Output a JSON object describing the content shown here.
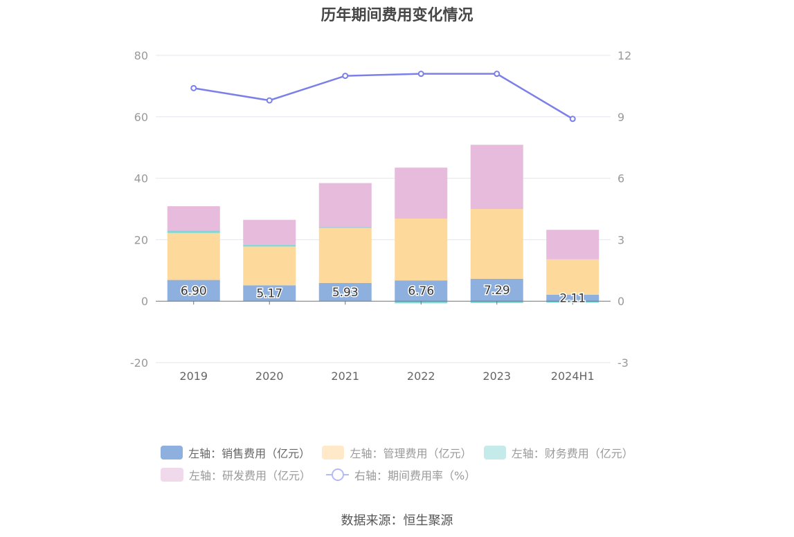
{
  "title": "历年期间费用变化情况",
  "source": "数据来源：恒生聚源",
  "colors": {
    "sales": "#8eb0de",
    "admin": "#fed99c",
    "finance": "#7dd8d8",
    "rd": "#e6bbdc",
    "rate": "#7b7fe8"
  },
  "legend": [
    {
      "label": "左轴：销售费用（亿元）",
      "color": "#8eb0de",
      "kind": "box",
      "active": true
    },
    {
      "label": "左轴：管理费用（亿元）",
      "color": "#ffe9c8",
      "kind": "box",
      "active": false
    },
    {
      "label": "左轴：财务费用（亿元）",
      "color": "#c5eaea",
      "kind": "box",
      "active": false
    },
    {
      "label": "左轴：研发费用（亿元）",
      "color": "#f1d9ec",
      "kind": "box",
      "active": false
    },
    {
      "label": "右轴：期间费用率（%）",
      "color": "#b6b9f4",
      "kind": "line",
      "active": false
    }
  ],
  "chart_data": {
    "type": "bar",
    "categories": [
      "2019",
      "2020",
      "2021",
      "2022",
      "2023",
      "2024H1"
    ],
    "series": [
      {
        "name": "左轴：销售费用（亿元）",
        "axis": "left",
        "values": [
          6.9,
          5.17,
          5.93,
          6.76,
          7.29,
          2.11
        ],
        "show_labels": true
      },
      {
        "name": "左轴：管理费用（亿元）",
        "axis": "left",
        "values": [
          15.3,
          12.6,
          17.9,
          20.1,
          22.7,
          11.5
        ]
      },
      {
        "name": "左轴：财务费用（亿元）",
        "axis": "left",
        "values": [
          0.7,
          0.5,
          0.2,
          -0.7,
          -0.6,
          -0.5
        ]
      },
      {
        "name": "左轴：研发费用（亿元）",
        "axis": "left",
        "values": [
          8.0,
          8.2,
          14.4,
          16.6,
          20.9,
          9.6
        ]
      },
      {
        "name": "右轴：期间费用率（%）",
        "axis": "right",
        "type": "line",
        "values": [
          10.4,
          9.8,
          11.0,
          11.1,
          11.1,
          8.9
        ]
      }
    ],
    "left_axis": {
      "ylim": [
        -20,
        80
      ],
      "ticks": [
        "-20",
        "0",
        "20",
        "40",
        "60",
        "80"
      ]
    },
    "right_axis": {
      "ylim": [
        -3,
        12
      ],
      "ticks": [
        "-3",
        "0",
        "3",
        "6",
        "9",
        "12"
      ]
    },
    "grid": true,
    "legend_position": "bottom"
  }
}
